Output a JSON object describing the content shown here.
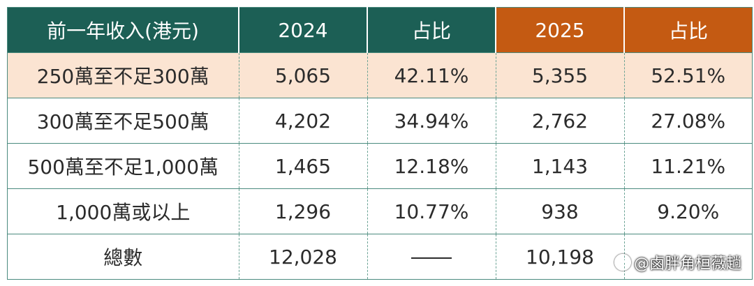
{
  "table": {
    "headers": [
      {
        "label": "前一年收入(港元)",
        "color": "#1c5f55"
      },
      {
        "label": "2024",
        "color": "#1c5f55"
      },
      {
        "label": "占比",
        "color": "#1c5f55"
      },
      {
        "label": "2025",
        "color": "#c45a12"
      },
      {
        "label": "占比",
        "color": "#c45a12"
      }
    ],
    "rows": [
      {
        "cells": [
          "250萬至不足300萬",
          "5,065",
          "42.11%",
          "5,355",
          "52.51%"
        ],
        "highlight": true
      },
      {
        "cells": [
          "300萬至不足500萬",
          "4,202",
          "34.94%",
          "2,762",
          "27.08%"
        ]
      },
      {
        "cells": [
          "500萬至不足1,000萬",
          "1,465",
          "12.18%",
          "1,143",
          "11.21%"
        ]
      },
      {
        "cells": [
          "1,000萬或以上",
          "1,296",
          "10.77%",
          "938",
          "9.20%"
        ]
      },
      {
        "cells": [
          "總數",
          "12,028",
          "",
          "10,198",
          ""
        ]
      }
    ],
    "highlight_color": "#fbe4d2"
  },
  "watermark": {
    "text": "@鹵胖角桓薇趟",
    "icon": "face-icon"
  }
}
